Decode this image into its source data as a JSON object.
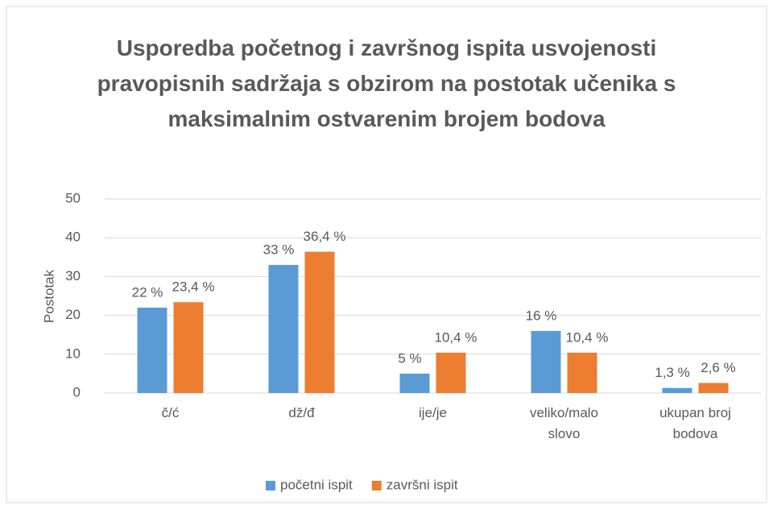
{
  "chart_data": {
    "type": "bar",
    "title": "Usporedba početnog i završnog ispita usvojenosti pravopisnih sadržaja s obzirom na postotak učenika s maksimalnim ostvarenim brojem bodova",
    "y_label": "Postotak",
    "categories": [
      "č/ć",
      "dž/đ",
      "ije/je",
      "veliko/malo slovo",
      "ukupan broj bodova"
    ],
    "series": [
      {
        "name": "početni ispit",
        "color": "#5b9bd5",
        "values": [
          22,
          33,
          5,
          16,
          1.3
        ],
        "value_labels": [
          "22 %",
          "33 %",
          "5 %",
          "16 %",
          "1,3 %"
        ]
      },
      {
        "name": "završni ispit",
        "color": "#ed7d31",
        "values": [
          23.4,
          36.4,
          10.4,
          10.4,
          2.6
        ],
        "value_labels": [
          "23,4 %",
          "36,4 %",
          "10,4 %",
          "10,4 %",
          "2,6 %"
        ]
      }
    ],
    "ylim": [
      0,
      50
    ],
    "yticks": [
      0,
      10,
      20,
      30,
      40,
      50
    ],
    "grid": true,
    "legend": "bottom"
  }
}
